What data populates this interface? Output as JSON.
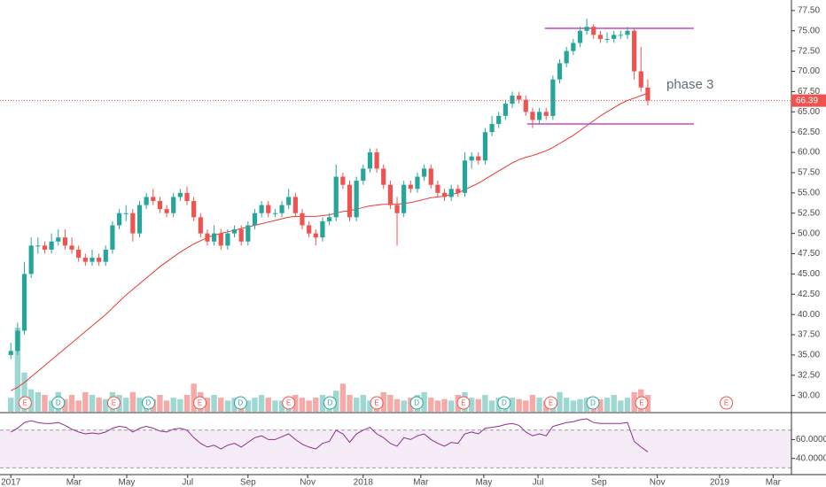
{
  "chart_data": [
    {
      "type": "candlestick",
      "xlim": [
        -1.6,
        115.2
      ],
      "ylim": [
        28,
        78.8
      ],
      "xticks": [
        {
          "value": 0,
          "label": "2017"
        },
        {
          "value": 9.3,
          "label": "Mar"
        },
        {
          "value": 17.1,
          "label": "May"
        },
        {
          "value": 26.1,
          "label": "Jul"
        },
        {
          "value": 35,
          "label": "Sep"
        },
        {
          "value": 43.8,
          "label": "Nov"
        },
        {
          "value": 52,
          "label": "2018"
        },
        {
          "value": 60.5,
          "label": "Mar"
        },
        {
          "value": 69.8,
          "label": "May"
        },
        {
          "value": 77.8,
          "label": "Jul"
        },
        {
          "value": 86.8,
          "label": "Sep"
        },
        {
          "value": 95.4,
          "label": "Nov"
        },
        {
          "value": 104.6,
          "label": "2019"
        },
        {
          "value": 112.5,
          "label": "Mar"
        }
      ],
      "yticks": [
        {
          "value": 30,
          "label": "30.00"
        },
        {
          "value": 32.5,
          "label": "32.50"
        },
        {
          "value": 35,
          "label": "35.00"
        },
        {
          "value": 37.5,
          "label": "37.50"
        },
        {
          "value": 40,
          "label": "40.00"
        },
        {
          "value": 42.5,
          "label": "42.50"
        },
        {
          "value": 45,
          "label": "45.00"
        },
        {
          "value": 47.5,
          "label": "47.50"
        },
        {
          "value": 50,
          "label": "50.00"
        },
        {
          "value": 52.5,
          "label": "52.50"
        },
        {
          "value": 55,
          "label": "55.00"
        },
        {
          "value": 57.5,
          "label": "57.50"
        },
        {
          "value": 60,
          "label": "60.00"
        },
        {
          "value": 62.5,
          "label": "62.50"
        },
        {
          "value": 65,
          "label": "65.00"
        },
        {
          "value": 67.5,
          "label": "67.50"
        },
        {
          "value": 70,
          "label": "70.00"
        },
        {
          "value": 72.5,
          "label": "72.50"
        },
        {
          "value": 75,
          "label": "75.00"
        },
        {
          "value": 77.5,
          "label": "77.50"
        }
      ],
      "up_color": "#26a69a",
      "down_color": "#ef5350",
      "open": [
        35,
        35.5,
        38,
        45,
        48.5,
        48.5,
        48,
        49,
        49.5,
        48.5,
        48,
        47,
        46.5,
        47,
        46.5,
        48,
        51,
        52.5,
        52.5,
        50,
        53.5,
        54.5,
        54,
        53,
        52.5,
        54.5,
        55,
        54,
        52,
        50,
        49,
        50,
        48.5,
        50,
        50.5,
        49,
        51,
        52.5,
        53.5,
        52.5,
        52.5,
        53.5,
        54.5,
        52.5,
        51,
        50,
        49.5,
        51.5,
        52,
        57,
        56,
        52,
        56.5,
        58,
        60,
        58,
        56,
        53.5,
        52.5,
        56,
        55.5,
        57,
        58,
        56,
        55,
        54.5,
        55.5,
        55,
        59,
        59.5,
        59,
        62.5,
        63.5,
        64.5,
        66,
        67,
        66.5,
        65,
        64,
        65,
        64.5,
        69,
        71,
        72.5,
        73.5,
        75,
        75.5,
        74.5,
        74,
        74,
        74.5,
        74.5,
        75,
        70,
        68
      ],
      "high": [
        36.5,
        39,
        46.5,
        49.5,
        49.5,
        49,
        50,
        50.5,
        50.5,
        49.5,
        48.5,
        47.5,
        48,
        47.5,
        48.5,
        51.5,
        53,
        53.5,
        53,
        54,
        55,
        55.5,
        54.5,
        53.5,
        55,
        55.5,
        55.8,
        54.5,
        52.5,
        50.5,
        51,
        50.5,
        50.5,
        51,
        51,
        51.5,
        53,
        54,
        54,
        53,
        54,
        55.5,
        55,
        53,
        51.5,
        50.5,
        52,
        52.5,
        58.5,
        57.5,
        56.5,
        57,
        58.5,
        60.5,
        60.5,
        58.5,
        56.5,
        54.5,
        56.5,
        56.5,
        57.5,
        58.5,
        58.5,
        56.5,
        55.5,
        56,
        56,
        60,
        60,
        60,
        63,
        64.5,
        65,
        66.5,
        67.5,
        67.5,
        67,
        65.5,
        65.5,
        65.5,
        69.5,
        71.5,
        73,
        74,
        75.5,
        76.5,
        75.8,
        75,
        74.8,
        75,
        75,
        75.5,
        75.3,
        73,
        69
      ],
      "low": [
        34.5,
        35,
        37.5,
        44.5,
        47.5,
        47.5,
        47.5,
        48.5,
        48,
        47.5,
        46.5,
        46,
        46,
        46,
        46,
        47.5,
        50.5,
        51.5,
        49,
        49.5,
        53,
        53.5,
        52.5,
        52,
        52,
        54,
        53.5,
        51.5,
        49.5,
        48.5,
        48.5,
        48,
        48,
        49.5,
        48.5,
        48.5,
        50.5,
        52,
        52,
        52,
        52,
        53,
        52,
        50.5,
        49.5,
        48.5,
        49,
        51,
        51.5,
        55.5,
        51.5,
        51.5,
        56,
        57.5,
        57.5,
        55.5,
        53,
        48.5,
        52,
        55,
        55,
        56.5,
        55.5,
        54.5,
        54,
        54,
        54.5,
        54.5,
        58,
        58.5,
        58.5,
        62,
        63,
        64,
        65.5,
        66,
        64.5,
        63,
        63.5,
        64,
        64,
        68.5,
        70.5,
        72,
        73,
        74.5,
        74,
        73.5,
        73.5,
        73.5,
        74,
        74,
        69,
        67.5,
        65.8
      ],
      "close": [
        35.5,
        38,
        45,
        48.5,
        48.5,
        48,
        49,
        49.5,
        48.5,
        48,
        47,
        46.5,
        47,
        46.5,
        48,
        51,
        52.5,
        52.5,
        50,
        53.5,
        54.5,
        54,
        53,
        52.5,
        54.5,
        55,
        54,
        52,
        50,
        49,
        50,
        48.5,
        50,
        50.5,
        49,
        51,
        52.5,
        53.5,
        52.5,
        52.5,
        53.5,
        54.5,
        52.5,
        51,
        50,
        49.5,
        51.5,
        52,
        57,
        56,
        52,
        56.5,
        58,
        60,
        58,
        56,
        53.5,
        52.5,
        56,
        55.5,
        57,
        58,
        56,
        55,
        54.5,
        55.5,
        55,
        59,
        59.5,
        59,
        62.5,
        63.5,
        64.5,
        66,
        67,
        66.5,
        65,
        64,
        65,
        64.5,
        69,
        71,
        72.5,
        73.5,
        75,
        75.5,
        74.5,
        74,
        74,
        74.5,
        74.5,
        75,
        70,
        68,
        66.39
      ],
      "volume": {
        "up_color": "#9fd8d2",
        "down_color": "#f5aaa8",
        "values": [
          10,
          60,
          28,
          16,
          14,
          12,
          8,
          14,
          9,
          12,
          8,
          14,
          12,
          10,
          9,
          14,
          12,
          10,
          14,
          10,
          8,
          9,
          12,
          8,
          10,
          9,
          12,
          20,
          14,
          10,
          12,
          10,
          8,
          10,
          9,
          8,
          10,
          12,
          10,
          8,
          8,
          10,
          12,
          10,
          8,
          10,
          12,
          9,
          15,
          20,
          12,
          10,
          12,
          8,
          10,
          14,
          12,
          9,
          8,
          10,
          12,
          14,
          10,
          8,
          9,
          8,
          12,
          14,
          10,
          9,
          12,
          8,
          10,
          8,
          10,
          9,
          8,
          12,
          10,
          8,
          10,
          14,
          10,
          8,
          9,
          10,
          8,
          9,
          10,
          12,
          8,
          10,
          14,
          16,
          12
        ]
      },
      "ma": {
        "color": "#e53935",
        "values": [
          30.6,
          31.0,
          31.6,
          32.3,
          33.0,
          33.7,
          34.4,
          35.1,
          35.8,
          36.5,
          37.2,
          37.9,
          38.6,
          39.3,
          40.0,
          40.8,
          41.6,
          42.4,
          43.1,
          43.8,
          44.5,
          45.2,
          45.9,
          46.5,
          47.1,
          47.7,
          48.2,
          48.7,
          49.1,
          49.5,
          49.8,
          50.0,
          50.2,
          50.4,
          50.6,
          50.8,
          51.0,
          51.2,
          51.4,
          51.6,
          51.8,
          52.0,
          52.1,
          52.1,
          52.1,
          52.1,
          52.2,
          52.3,
          52.5,
          52.7,
          52.8,
          53.0,
          53.2,
          53.4,
          53.5,
          53.6,
          53.6,
          53.6,
          53.7,
          53.8,
          54.0,
          54.2,
          54.4,
          54.5,
          54.6,
          54.8,
          55.0,
          55.4,
          55.8,
          56.2,
          56.7,
          57.2,
          57.7,
          58.2,
          58.7,
          59.1,
          59.4,
          59.6,
          59.9,
          60.2,
          60.6,
          61.1,
          61.6,
          62.1,
          62.7,
          63.3,
          63.9,
          64.5,
          65.0,
          65.5,
          66.0,
          66.4,
          66.7,
          67.0,
          67.3
        ]
      },
      "levels": [
        {
          "value": 75.3,
          "x": [
            78.8,
            100.8
          ],
          "color": "#c54ac5"
        },
        {
          "value": 63.5,
          "x": [
            76.2,
            100.8
          ],
          "color": "#c54ac5"
        }
      ],
      "last_price_color": "#ef5350",
      "annotation": "phase 3",
      "events": [
        {
          "label": "E",
          "x": 2.1,
          "color": "#ef5350"
        },
        {
          "label": "D",
          "x": 7.0,
          "color": "#26a69a"
        },
        {
          "label": "E",
          "x": 15.2,
          "color": "#ef5350"
        },
        {
          "label": "D",
          "x": 20.3,
          "color": "#26a69a"
        },
        {
          "label": "E",
          "x": 27.9,
          "color": "#ef5350"
        },
        {
          "label": "D",
          "x": 33.9,
          "color": "#26a69a"
        },
        {
          "label": "E",
          "x": 41.0,
          "color": "#ef5350"
        },
        {
          "label": "D",
          "x": 47.1,
          "color": "#26a69a"
        },
        {
          "label": "E",
          "x": 54.0,
          "color": "#ef5350"
        },
        {
          "label": "D",
          "x": 59.9,
          "color": "#26a69a"
        },
        {
          "label": "E",
          "x": 66.8,
          "color": "#ef5350"
        },
        {
          "label": "D",
          "x": 72.8,
          "color": "#26a69a"
        },
        {
          "label": "E",
          "x": 79.7,
          "color": "#ef5350"
        },
        {
          "label": "D",
          "x": 85.9,
          "color": "#26a69a"
        },
        {
          "label": "E",
          "x": 93.1,
          "color": "#ef5350"
        },
        {
          "label": "E",
          "x": 105.6,
          "color": "#ef5350"
        }
      ]
    },
    {
      "type": "line",
      "ylim": [
        23.8,
        87.6
      ],
      "yticks": [
        {
          "value": 40,
          "label": "40.0000"
        },
        {
          "value": 60,
          "label": "60.0000"
        }
      ],
      "bands": [
        30,
        70
      ],
      "band_color": "#9c27b0",
      "color": "#8e2c8e",
      "values": [
        68,
        72,
        78,
        80,
        78,
        77,
        77,
        78,
        75,
        71,
        68,
        66,
        67,
        66,
        68,
        72,
        74,
        73,
        68,
        72,
        74,
        72,
        69,
        68,
        71,
        72,
        70,
        62,
        56,
        52,
        54,
        50,
        54,
        56,
        52,
        57,
        62,
        64,
        60,
        60,
        63,
        66,
        60,
        55,
        52,
        50,
        56,
        58,
        70,
        66,
        57,
        66,
        70,
        73,
        66,
        62,
        56,
        53,
        62,
        60,
        64,
        66,
        60,
        56,
        53,
        57,
        56,
        66,
        68,
        66,
        72,
        73,
        74,
        76,
        77,
        75,
        68,
        64,
        66,
        64,
        74,
        76,
        78,
        79,
        81,
        82,
        78,
        77,
        77,
        77,
        77,
        78,
        58,
        52,
        47
      ]
    }
  ]
}
